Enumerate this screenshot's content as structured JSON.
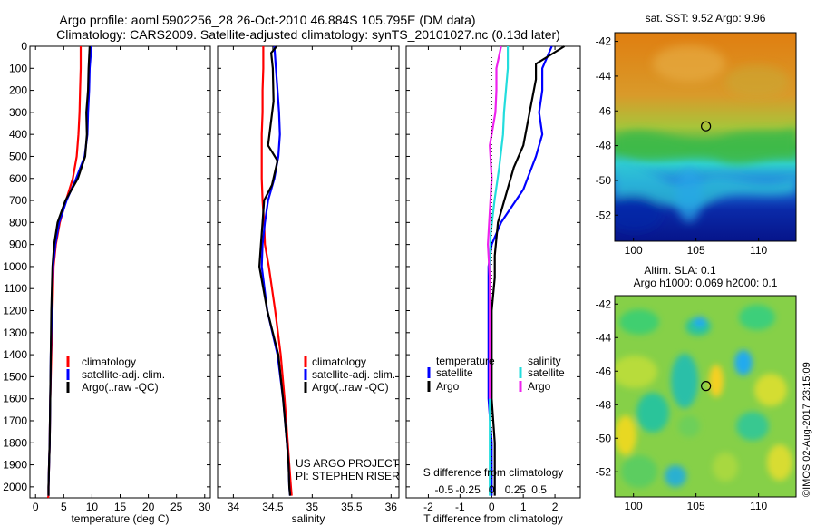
{
  "header": {
    "line1": "Argo profile: aoml 5902256_28 26-Oct-2010 46.884S 105.795E (DM data)",
    "line2": "Climatology: CARS2009. Satellite-adjusted climatology: synTS_20101027.nc (0.13d later)"
  },
  "colors": {
    "climatology": "#ff0000",
    "satellite": "#0000ff",
    "argo": "#000000",
    "sat_diff_cyan": "#22dddd",
    "argo_diff_magenta": "#ee22ee"
  },
  "chart_data": [
    {
      "id": "temperature",
      "type": "line",
      "xlabel": "temperature (deg C)",
      "ylabel": "",
      "xlim": [
        -1,
        31
      ],
      "ylim": [
        2050,
        0
      ],
      "xticks": [
        0,
        5,
        10,
        15,
        20,
        25,
        30
      ],
      "xtick_labels": [
        "0",
        "5",
        "10",
        "15",
        "20",
        "25",
        "30"
      ],
      "yticks": [
        0,
        100,
        200,
        300,
        400,
        500,
        600,
        700,
        800,
        900,
        1000,
        1100,
        1200,
        1300,
        1400,
        1500,
        1600,
        1700,
        1800,
        1900,
        2000
      ],
      "ytick_labels": [
        "0",
        "100",
        "200",
        "300",
        "400",
        "500",
        "600",
        "700",
        "800",
        "900",
        "1000",
        "1100",
        "1200",
        "1300",
        "1400",
        "1500",
        "1600",
        "1700",
        "1800",
        "1900",
        "2000"
      ],
      "legend": [
        "climatology",
        "satellite-adj. clim.",
        "Argo(..raw -QC)"
      ],
      "series": [
        {
          "name": "climatology",
          "color": "#ff0000",
          "x": [
            8.0,
            8.0,
            7.9,
            7.8,
            7.6,
            7.3,
            6.6,
            5.4,
            4.3,
            3.6,
            3.2,
            3.0,
            2.8,
            2.6,
            2.5,
            2.4,
            2.3,
            2.3,
            2.2
          ],
          "y": [
            0,
            100,
            200,
            300,
            400,
            500,
            600,
            700,
            800,
            900,
            1000,
            1200,
            1400,
            1600,
            1800,
            1900,
            2000,
            2040,
            2050
          ]
        },
        {
          "name": "satellite-adj. clim.",
          "color": "#0000ff",
          "x": [
            9.9,
            9.6,
            9.5,
            9.3,
            9.2,
            8.7,
            7.2,
            5.5,
            4.2,
            3.5,
            3.1,
            2.9,
            2.7,
            2.6,
            2.5,
            2.4,
            2.3,
            2.3
          ],
          "y": [
            0,
            100,
            200,
            300,
            400,
            500,
            600,
            700,
            800,
            900,
            1000,
            1200,
            1400,
            1600,
            1800,
            1900,
            2000,
            2040
          ]
        },
        {
          "name": "Argo(..raw -QC)",
          "color": "#000000",
          "x": [
            9.6,
            9.4,
            9.3,
            9.0,
            9.1,
            8.8,
            7.5,
            5.3,
            3.9,
            3.3,
            3.0,
            2.8,
            2.7,
            2.6,
            2.5,
            2.4,
            2.3,
            2.3
          ],
          "y": [
            0,
            100,
            200,
            300,
            400,
            500,
            600,
            700,
            800,
            900,
            1000,
            1200,
            1400,
            1600,
            1800,
            1900,
            2000,
            2040
          ]
        }
      ]
    },
    {
      "id": "salinity",
      "type": "line",
      "xlabel": "salinity",
      "ylabel": "",
      "xlim": [
        33.8,
        36.1
      ],
      "ylim": [
        2050,
        0
      ],
      "xticks": [
        34,
        34.5,
        35,
        35.5,
        36
      ],
      "xtick_labels": [
        "34",
        "34.5",
        "35",
        "35.5",
        "36"
      ],
      "legend": [
        "climatology",
        "satellite-adj. clim.",
        "Argo(..raw -QC)"
      ],
      "annotations": [
        "US ARGO PROJECT",
        "PI: STEPHEN RISER"
      ],
      "series": [
        {
          "name": "climatology",
          "color": "#ff0000",
          "x": [
            34.38,
            34.38,
            34.37,
            34.37,
            34.36,
            34.36,
            34.36,
            34.37,
            34.39,
            34.4,
            34.45,
            34.53,
            34.6,
            34.65,
            34.69,
            34.71,
            34.73,
            34.74
          ],
          "y": [
            0,
            100,
            200,
            300,
            400,
            500,
            600,
            700,
            800,
            900,
            1000,
            1200,
            1400,
            1600,
            1800,
            1900,
            2000,
            2040
          ]
        },
        {
          "name": "satellite-adj. clim.",
          "color": "#0000ff",
          "x": [
            34.52,
            34.54,
            34.56,
            34.58,
            34.59,
            34.57,
            34.52,
            34.44,
            34.4,
            34.37,
            34.36,
            34.43,
            34.56,
            34.63,
            34.68,
            34.7,
            34.71,
            34.72
          ],
          "y": [
            0,
            100,
            200,
            300,
            400,
            500,
            600,
            700,
            800,
            900,
            1000,
            1200,
            1400,
            1600,
            1800,
            1900,
            2000,
            2040
          ]
        },
        {
          "name": "Argo(..raw -QC)",
          "color": "#000000",
          "x": [
            34.55,
            34.48,
            34.5,
            34.51,
            34.44,
            34.56,
            34.49,
            34.39,
            34.37,
            34.35,
            34.33,
            34.43,
            34.57,
            34.63,
            34.68,
            34.7,
            34.71,
            34.72
          ],
          "y": [
            0,
            30,
            100,
            250,
            450,
            520,
            630,
            700,
            800,
            900,
            1000,
            1200,
            1400,
            1600,
            1800,
            1900,
            2000,
            2040
          ]
        }
      ]
    },
    {
      "id": "differences",
      "type": "line",
      "xlabel": "T difference from climatology",
      "xlabel_top": "S difference from climatology",
      "ylabel": "",
      "xlim": [
        -2.7,
        2.8
      ],
      "ylim": [
        2050,
        0
      ],
      "xticks": [
        -2,
        -1,
        0,
        1,
        2
      ],
      "xtick_labels": [
        "-2",
        "-1",
        "0",
        "1",
        "2"
      ],
      "xticks_s": [
        -0.5,
        -0.25,
        0,
        0.25,
        0.5
      ],
      "xtick_labels_s": [
        "-0.5",
        "-0.25",
        "0",
        "0.25",
        "0.5"
      ],
      "legend_titles": [
        "temperature",
        "salinity"
      ],
      "legend": [
        "satellite",
        "Argo",
        "satellite",
        "Argo"
      ],
      "series": [
        {
          "name": "satellite",
          "color": "#0000ff",
          "x": [
            1.9,
            1.6,
            1.6,
            1.5,
            1.6,
            1.4,
            1.0,
            0.3,
            0.0,
            -0.1,
            -0.1,
            -0.1,
            -0.1,
            0.0,
            0.0
          ],
          "y": [
            0,
            100,
            200,
            300,
            400,
            500,
            650,
            800,
            900,
            1000,
            1200,
            1400,
            1600,
            1800,
            2040
          ]
        },
        {
          "name": "Argo",
          "color": "#000000",
          "x": [
            2.3,
            1.4,
            1.4,
            1.2,
            1.0,
            0.7,
            0.5,
            0.2,
            0.1,
            0.1,
            0.0,
            0.0,
            0.0,
            0.1,
            0.1
          ],
          "y": [
            0,
            80,
            150,
            300,
            450,
            550,
            650,
            800,
            950,
            1050,
            1200,
            1400,
            1600,
            1800,
            2040
          ]
        },
        {
          "name": "satellite",
          "color": "#22dddd",
          "x": [
            0.17,
            0.17,
            0.15,
            0.13,
            0.12,
            0.08,
            0.03,
            -0.01,
            -0.02,
            -0.02,
            -0.02,
            -0.02,
            -0.02,
            -0.02
          ],
          "y": [
            0,
            100,
            200,
            300,
            400,
            550,
            700,
            850,
            1000,
            1200,
            1400,
            1600,
            1800,
            2040
          ]
        },
        {
          "name": "Argo",
          "color": "#ee22ee",
          "x": [
            0.1,
            0.05,
            0.05,
            0.04,
            -0.02,
            0.0,
            -0.02,
            -0.04,
            -0.02,
            -0.02,
            -0.02,
            -0.02
          ],
          "y": [
            0,
            100,
            200,
            300,
            450,
            600,
            750,
            900,
            1050,
            1200,
            1400,
            1600
          ]
        }
      ]
    },
    {
      "id": "sst-map",
      "type": "heatmap",
      "title": "sat. SST: 9.52 Argo: 9.96",
      "xlim": [
        98.5,
        113
      ],
      "ylim": [
        -53.5,
        -41.5
      ],
      "xticks": [
        100,
        105,
        110
      ],
      "xtick_labels": [
        "100",
        "105",
        "110"
      ],
      "yticks": [
        -42,
        -44,
        -46,
        -48,
        -50,
        -52
      ],
      "ytick_labels": [
        "-42",
        "-44",
        "-46",
        "-48",
        "-50",
        "-52"
      ],
      "marker": {
        "lon": 105.795,
        "lat": -46.884
      }
    },
    {
      "id": "sla-map",
      "type": "heatmap",
      "title": "Altim. SLA: 0.1",
      "subtitle": "Argo h1000: 0.069 h2000: 0.1",
      "xlim": [
        98.5,
        113
      ],
      "ylim": [
        -53.5,
        -41.5
      ],
      "xticks": [
        100,
        105,
        110
      ],
      "xtick_labels": [
        "100",
        "105",
        "110"
      ],
      "yticks": [
        -42,
        -44,
        -46,
        -48,
        -50,
        -52
      ],
      "ytick_labels": [
        "-42",
        "-44",
        "-46",
        "-48",
        "-50",
        "-52"
      ],
      "marker": {
        "lon": 105.795,
        "lat": -46.884
      }
    }
  ],
  "legend_labels": {
    "t_clim": "climatology",
    "t_sat": "satellite-adj. clim.",
    "t_argo": "Argo(..raw -QC)",
    "s_clim": "climatology",
    "s_sat": "satellite-adj. clim.",
    "s_argo": "Argo(..raw -QC)",
    "d_temp_title": "temperature",
    "d_sal_title": "salinity",
    "d_temp_sat": "satellite",
    "d_temp_argo": "Argo",
    "d_sal_sat": "satellite",
    "d_sal_argo": "Argo"
  },
  "credits": {
    "project": "US ARGO PROJECT",
    "pi": "PI: STEPHEN RISER",
    "stamp": "©IMOS 02-Aug-2017 23:15:09"
  }
}
